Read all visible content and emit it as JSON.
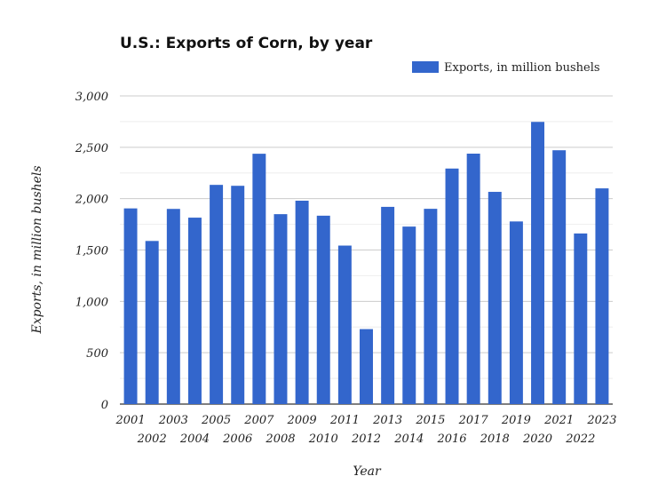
{
  "chart_data": {
    "type": "bar",
    "title": "U.S.: Exports of Corn, by year",
    "xlabel": "Year",
    "ylabel": "Exports, in million bushels",
    "ylim": [
      0,
      3000
    ],
    "yticks": [
      0,
      500,
      1000,
      1500,
      2000,
      2500,
      3000
    ],
    "ytick_labels": [
      "0",
      "500",
      "1,000",
      "1,500",
      "2,000",
      "2,500",
      "3,000"
    ],
    "grid": true,
    "legend_position": "top-right",
    "color": "#3366cc",
    "categories": [
      "2001",
      "2002",
      "2003",
      "2004",
      "2005",
      "2006",
      "2007",
      "2008",
      "2009",
      "2010",
      "2011",
      "2012",
      "2013",
      "2014",
      "2015",
      "2016",
      "2017",
      "2018",
      "2019",
      "2020",
      "2021",
      "2022",
      "2023"
    ],
    "series": [
      {
        "name": "Exports, in million bushels",
        "values": [
          1905,
          1588,
          1900,
          1815,
          2134,
          2125,
          2437,
          1849,
          1980,
          1834,
          1543,
          730,
          1920,
          1728,
          1901,
          2293,
          2438,
          2066,
          1778,
          2747,
          2471,
          1661,
          2100
        ]
      }
    ]
  }
}
